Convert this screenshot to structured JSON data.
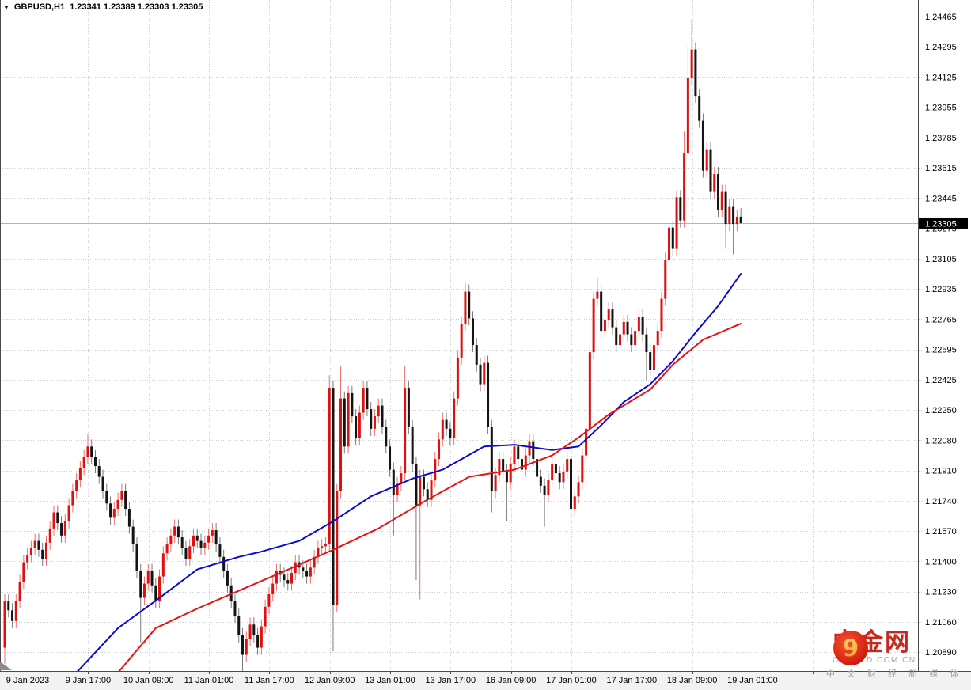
{
  "header": {
    "dropdown_icon": "▼",
    "symbol_period": "GBPUSD,H1",
    "quote_line": "1.23341 1.23389 1.23303 1.23305"
  },
  "price_axis": {
    "labels": [
      "1.24465",
      "1.24295",
      "1.24125",
      "1.23955",
      "1.23785",
      "1.23615",
      "1.23445",
      "1.23275",
      "1.23105",
      "1.22935",
      "1.22765",
      "1.22595",
      "1.22425",
      "1.22250",
      "1.22080",
      "1.21910",
      "1.21740",
      "1.21570",
      "1.21400",
      "1.21230",
      "1.21060",
      "1.20890"
    ],
    "current_price": "1.23305"
  },
  "time_axis": {
    "labels": [
      "9 Jan 2023",
      "9 Jan 17:00",
      "10 Jan 09:00",
      "11 Jan 01:00",
      "11 Jan 17:00",
      "12 Jan 09:00",
      "13 Jan 01:00",
      "13 Jan 17:00",
      "16 Jan 09:00",
      "17 Jan 01:00",
      "17 Jan 17:00",
      "18 Jan 09:00",
      "19 Jan 01:00"
    ]
  },
  "watermark": {
    "logo_glyph": "9",
    "brand": "中金网",
    "domain": "CNGOLD.COM.CN",
    "tagline": "中 文 财 经 新 媒 体"
  },
  "chart_data": {
    "type": "candlestick",
    "symbol": "GBPUSD",
    "timeframe": "H1",
    "title": "GBPUSD,H1",
    "current_bar": {
      "open": 1.23341,
      "high": 1.23389,
      "low": 1.23303,
      "close": 1.23305
    },
    "price_axis_top": 1.24465,
    "price_axis_bottom": 1.2089,
    "price_label_step": 0.0017,
    "grid": true,
    "bid_line_price": 1.23305,
    "candles": {
      "first_open": 1.2092,
      "default_wick": 0.0004,
      "closes": [
        1.2118,
        1.2113,
        1.2107,
        1.2118,
        1.2129,
        1.214,
        1.2144,
        1.2148,
        1.2152,
        1.2147,
        1.2142,
        1.2151,
        1.2159,
        1.2168,
        1.2162,
        1.2155,
        1.2163,
        1.2172,
        1.218,
        1.2186,
        1.2193,
        1.2199,
        1.2205,
        1.2199,
        1.2194,
        1.2188,
        1.218,
        1.2173,
        1.2165,
        1.217,
        1.2175,
        1.218,
        1.217,
        1.216,
        1.215,
        1.2135,
        1.212,
        1.2128,
        1.2135,
        1.2127,
        1.2118,
        1.2132,
        1.2145,
        1.215,
        1.2155,
        1.216,
        1.2154,
        1.2148,
        1.2142,
        1.2149,
        1.2155,
        1.2152,
        1.2148,
        1.2151,
        1.2155,
        1.2158,
        1.215,
        1.2143,
        1.2135,
        1.2127,
        1.2118,
        1.211,
        1.2099,
        1.2088,
        1.2097,
        1.2105,
        1.2099,
        1.2092,
        1.2104,
        1.2115,
        1.2122,
        1.2128,
        1.2135,
        1.2133,
        1.213,
        1.2128,
        1.2134,
        1.214,
        1.2137,
        1.2135,
        1.2132,
        1.2137,
        1.2143,
        1.2148,
        1.2149,
        1.215,
        1.2238,
        1.2116,
        1.218,
        1.2232,
        1.2205,
        1.2235,
        1.2222,
        1.221,
        1.2224,
        1.2238,
        1.2226,
        1.2215,
        1.2222,
        1.2228,
        1.2216,
        1.2205,
        1.2192,
        1.2178,
        1.2184,
        1.219,
        1.2238,
        1.2216,
        1.2195,
        1.2172,
        1.2188,
        1.2181,
        1.2175,
        1.2186,
        1.2198,
        1.2209,
        1.222,
        1.2215,
        1.221,
        1.2232,
        1.2255,
        1.2274,
        1.2292,
        1.2277,
        1.2262,
        1.2251,
        1.224,
        1.2252,
        1.2216,
        1.218,
        1.2189,
        1.2198,
        1.2191,
        1.2185,
        1.2195,
        1.2205,
        1.2198,
        1.2192,
        1.22,
        1.2208,
        1.2198,
        1.2188,
        1.2183,
        1.2178,
        1.2186,
        1.2195,
        1.219,
        1.2185,
        1.2191,
        1.2198,
        1.217,
        1.2177,
        1.2185,
        1.22,
        1.2215,
        1.2258,
        1.2288,
        1.2292,
        1.227,
        1.2276,
        1.2282,
        1.2272,
        1.2262,
        1.2268,
        1.2275,
        1.2268,
        1.2262,
        1.227,
        1.2278,
        1.2268,
        1.2258,
        1.2248,
        1.2262,
        1.227,
        1.2288,
        1.231,
        1.2328,
        1.2316,
        1.2345,
        1.2332,
        1.237,
        1.2412,
        1.2428,
        1.2402,
        1.2388,
        1.236,
        1.2372,
        1.2348,
        1.2358,
        1.2338,
        1.2348,
        1.233,
        1.234,
        1.233,
        1.23341,
        1.23305
      ],
      "high_overrides": {
        "22": 1.2212,
        "86": 1.2245,
        "89": 1.225,
        "106": 1.225,
        "122": 1.2297,
        "157": 1.23,
        "180": 1.2382,
        "181": 1.243,
        "182": 1.2445,
        "195": 1.23389
      },
      "low_overrides": {
        "0": 1.2083,
        "36": 1.2095,
        "63": 1.207,
        "87": 1.209,
        "103": 1.2155,
        "109": 1.213,
        "110": 1.2119,
        "129": 1.2168,
        "133": 1.2163,
        "143": 1.216,
        "150": 1.2144,
        "170": 1.2242,
        "191": 1.2316,
        "193": 1.2313,
        "195": 1.23303
      }
    },
    "ma_blue": {
      "name": "fast moving average",
      "points": [
        [
          19,
          1.2078
        ],
        [
          30,
          1.2103
        ],
        [
          41,
          1.212
        ],
        [
          51,
          1.2136
        ],
        [
          62,
          1.2143
        ],
        [
          68,
          1.2146
        ],
        [
          78,
          1.2152
        ],
        [
          87,
          1.2163
        ],
        [
          97,
          1.2177
        ],
        [
          108,
          1.2187
        ],
        [
          116,
          1.2192
        ],
        [
          127,
          1.2205
        ],
        [
          135,
          1.2206
        ],
        [
          145,
          1.2203
        ],
        [
          152,
          1.2205
        ],
        [
          158,
          1.2217
        ],
        [
          164,
          1.223
        ],
        [
          171,
          1.224
        ],
        [
          177,
          1.2253
        ],
        [
          183,
          1.2269
        ],
        [
          189,
          1.2284
        ],
        [
          195,
          1.2302
        ]
      ]
    },
    "ma_red": {
      "name": "slow moving average",
      "points": [
        [
          30,
          1.2078
        ],
        [
          40,
          1.2103
        ],
        [
          51,
          1.2114
        ],
        [
          62,
          1.2124
        ],
        [
          73,
          1.2134
        ],
        [
          87,
          1.2147
        ],
        [
          99,
          1.2159
        ],
        [
          111,
          1.2174
        ],
        [
          123,
          1.2188
        ],
        [
          135,
          1.2192
        ],
        [
          145,
          1.22
        ],
        [
          152,
          1.221
        ],
        [
          160,
          1.2223
        ],
        [
          171,
          1.2237
        ],
        [
          177,
          1.2251
        ],
        [
          185,
          1.2265
        ],
        [
          195,
          1.2274
        ]
      ]
    },
    "colors": {
      "candle_up": "#e01010",
      "candle_down": "#141414",
      "wick_up": "#f07070",
      "wick_down": "#7a7a7a",
      "ma_blue": "#0b0bcf",
      "ma_red": "#e41414",
      "grid": "#c7cedb",
      "bid_line": "#b0b4bc",
      "axis_border": "#4a4a4a",
      "price_box_bg": "#000000",
      "price_box_text": "#ffffff",
      "watermark_red": "#c5281c",
      "watermark_gray": "#9aa3ab"
    }
  }
}
